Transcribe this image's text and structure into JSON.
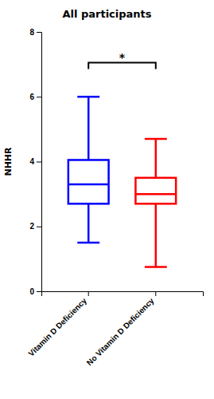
{
  "chart_data": {
    "type": "box",
    "title": "All participants",
    "ylabel": "NHHR",
    "categories": [
      "Vitamin D Deficiency",
      "No Vitamin D Deficiency"
    ],
    "colors": [
      "#0000FF",
      "#FF0000"
    ],
    "boxes": [
      {
        "whisker_low": 1.5,
        "q1": 2.7,
        "median": 3.3,
        "q3": 4.05,
        "whisker_high": 6.0
      },
      {
        "whisker_low": 0.75,
        "q1": 2.7,
        "median": 3.0,
        "q3": 3.5,
        "whisker_high": 4.7
      }
    ],
    "ylim": [
      0,
      8
    ],
    "yticks": [
      0,
      2,
      4,
      6,
      8
    ],
    "annotations": [
      {
        "text": "*",
        "y": 7.05,
        "between": [
          "Vitamin D Deficiency",
          "No Vitamin D Deficiency"
        ]
      }
    ]
  }
}
